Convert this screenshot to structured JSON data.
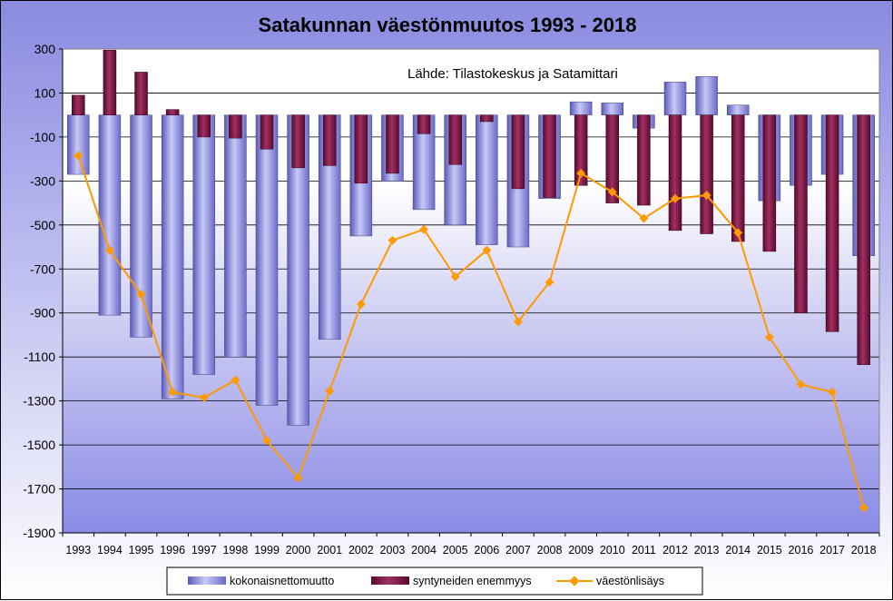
{
  "chart_data": {
    "type": "bar",
    "title": "Satakunnan väestönmuutos 1993 - 2018",
    "annotation": "Lähde: Tilastokeskus ja Satamittari",
    "xlabel": "",
    "ylabel": "",
    "ylim": [
      -1900,
      300
    ],
    "yticks": [
      300,
      100,
      -100,
      -300,
      -500,
      -700,
      -900,
      -1100,
      -1300,
      -1500,
      -1700,
      -1900
    ],
    "grid": true,
    "legend_position": "bottom",
    "categories": [
      "1993",
      "1994",
      "1995",
      "1996",
      "1997",
      "1998",
      "1999",
      "2000",
      "2001",
      "2002",
      "2003",
      "2004",
      "2005",
      "2006",
      "2007",
      "2008",
      "2009",
      "2010",
      "2011",
      "2012",
      "2013",
      "2014",
      "2015",
      "2016",
      "2017",
      "2018"
    ],
    "series": [
      {
        "name": "kokonaisnettomuutto",
        "kind": "bar",
        "color": "#8080e0",
        "values": [
          -270,
          -910,
          -1010,
          -1290,
          -1180,
          -1100,
          -1320,
          -1410,
          -1020,
          -550,
          -300,
          -430,
          -500,
          -590,
          -600,
          -380,
          60,
          55,
          -60,
          150,
          175,
          45,
          -390,
          -320,
          -270,
          -640
        ]
      },
      {
        "name": "syntyneiden enemmyys",
        "kind": "bar",
        "color": "#800040",
        "values": [
          90,
          295,
          195,
          25,
          -100,
          -105,
          -155,
          -240,
          -230,
          -310,
          -265,
          -85,
          -225,
          -30,
          -335,
          -375,
          -320,
          -400,
          -410,
          -525,
          -540,
          -575,
          -620,
          -900,
          -985,
          -1135
        ]
      },
      {
        "name": "väestönlisäys",
        "kind": "line",
        "color": "#ff9900",
        "values": [
          -185,
          -615,
          -815,
          -1260,
          -1285,
          -1205,
          -1480,
          -1650,
          -1255,
          -860,
          -570,
          -520,
          -735,
          -615,
          -940,
          -760,
          -265,
          -350,
          -470,
          -380,
          -365,
          -535,
          -1010,
          -1225,
          -1260,
          -1785
        ]
      }
    ]
  }
}
